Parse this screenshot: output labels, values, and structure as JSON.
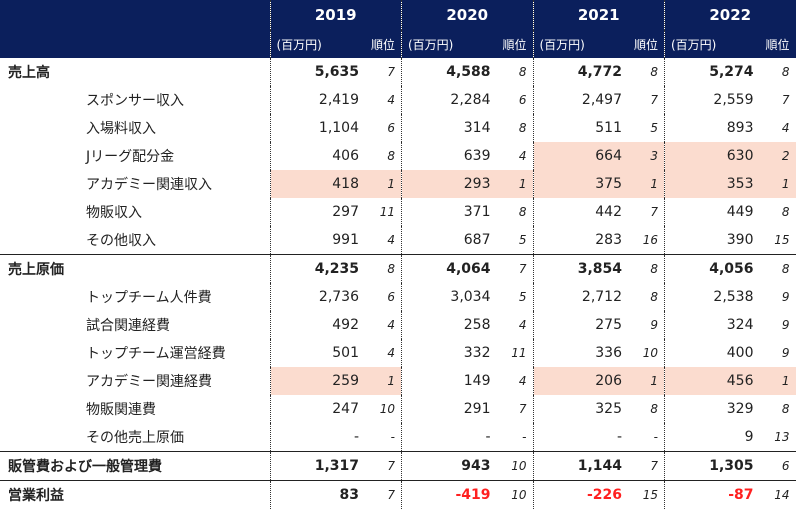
{
  "header": {
    "columns": [
      {
        "year": "2019",
        "amount": "(百万円)",
        "rank": "順位"
      },
      {
        "year": "2020",
        "amount": "(百万円)",
        "rank": "順位"
      },
      {
        "year": "2021",
        "amount": "(百万円)",
        "rank": "順位"
      },
      {
        "year": "2022",
        "amount": "(百万円)",
        "rank": "順位"
      }
    ]
  },
  "table": {
    "rows": [
      {
        "label": "売上高",
        "bold": true,
        "cells": [
          {
            "amount": "5,635",
            "rank": "7"
          },
          {
            "amount": "4,588",
            "rank": "8"
          },
          {
            "amount": "4,772",
            "rank": "8"
          },
          {
            "amount": "5,274",
            "rank": "8"
          }
        ]
      },
      {
        "label": "スポンサー収入",
        "cells": [
          {
            "amount": "2,419",
            "rank": "4"
          },
          {
            "amount": "2,284",
            "rank": "6"
          },
          {
            "amount": "2,497",
            "rank": "7"
          },
          {
            "amount": "2,559",
            "rank": "7"
          }
        ]
      },
      {
        "label": "入場料収入",
        "cells": [
          {
            "amount": "1,104",
            "rank": "6"
          },
          {
            "amount": "314",
            "rank": "8"
          },
          {
            "amount": "511",
            "rank": "5"
          },
          {
            "amount": "893",
            "rank": "4"
          }
        ]
      },
      {
        "label": "Jリーグ配分金",
        "cells": [
          {
            "amount": "406",
            "rank": "8"
          },
          {
            "amount": "639",
            "rank": "4"
          },
          {
            "amount": "664",
            "rank": "3",
            "highlight": true
          },
          {
            "amount": "630",
            "rank": "2",
            "highlight": true
          }
        ]
      },
      {
        "label": "アカデミー関連収入",
        "cells": [
          {
            "amount": "418",
            "rank": "1",
            "highlight": true
          },
          {
            "amount": "293",
            "rank": "1",
            "highlight": true
          },
          {
            "amount": "375",
            "rank": "1",
            "highlight": true
          },
          {
            "amount": "353",
            "rank": "1",
            "highlight": true
          }
        ]
      },
      {
        "label": "物販収入",
        "cells": [
          {
            "amount": "297",
            "rank": "11"
          },
          {
            "amount": "371",
            "rank": "8"
          },
          {
            "amount": "442",
            "rank": "7"
          },
          {
            "amount": "449",
            "rank": "8"
          }
        ]
      },
      {
        "label": "その他収入",
        "cells": [
          {
            "amount": "991",
            "rank": "4"
          },
          {
            "amount": "687",
            "rank": "5"
          },
          {
            "amount": "283",
            "rank": "16"
          },
          {
            "amount": "390",
            "rank": "15"
          }
        ]
      },
      {
        "label": "売上原価",
        "bold": true,
        "section": true,
        "cells": [
          {
            "amount": "4,235",
            "rank": "8"
          },
          {
            "amount": "4,064",
            "rank": "7"
          },
          {
            "amount": "3,854",
            "rank": "8"
          },
          {
            "amount": "4,056",
            "rank": "8"
          }
        ]
      },
      {
        "label": "トップチーム人件費",
        "cells": [
          {
            "amount": "2,736",
            "rank": "6"
          },
          {
            "amount": "3,034",
            "rank": "5"
          },
          {
            "amount": "2,712",
            "rank": "8"
          },
          {
            "amount": "2,538",
            "rank": "9"
          }
        ]
      },
      {
        "label": "試合関連経費",
        "cells": [
          {
            "amount": "492",
            "rank": "4"
          },
          {
            "amount": "258",
            "rank": "4"
          },
          {
            "amount": "275",
            "rank": "9"
          },
          {
            "amount": "324",
            "rank": "9"
          }
        ]
      },
      {
        "label": "トップチーム運営経費",
        "cells": [
          {
            "amount": "501",
            "rank": "4"
          },
          {
            "amount": "332",
            "rank": "11"
          },
          {
            "amount": "336",
            "rank": "10"
          },
          {
            "amount": "400",
            "rank": "9"
          }
        ]
      },
      {
        "label": "アカデミー関連経費",
        "cells": [
          {
            "amount": "259",
            "rank": "1",
            "highlight": true
          },
          {
            "amount": "149",
            "rank": "4"
          },
          {
            "amount": "206",
            "rank": "1",
            "highlight": true
          },
          {
            "amount": "456",
            "rank": "1",
            "highlight": true
          }
        ]
      },
      {
        "label": "物販関連費",
        "cells": [
          {
            "amount": "247",
            "rank": "10"
          },
          {
            "amount": "291",
            "rank": "7"
          },
          {
            "amount": "325",
            "rank": "8"
          },
          {
            "amount": "329",
            "rank": "8"
          }
        ]
      },
      {
        "label": "その他売上原価",
        "cells": [
          {
            "amount": "-",
            "rank": "-"
          },
          {
            "amount": "-",
            "rank": "-"
          },
          {
            "amount": "-",
            "rank": "-"
          },
          {
            "amount": "9",
            "rank": "13"
          }
        ]
      },
      {
        "label": "販管費および一般管理費",
        "bold": true,
        "section": true,
        "cells": [
          {
            "amount": "1,317",
            "rank": "7"
          },
          {
            "amount": "943",
            "rank": "10"
          },
          {
            "amount": "1,144",
            "rank": "7"
          },
          {
            "amount": "1,305",
            "rank": "6"
          }
        ]
      },
      {
        "label": "営業利益",
        "bold": true,
        "section": true,
        "cells": [
          {
            "amount": "83",
            "rank": "7"
          },
          {
            "amount": "-419",
            "rank": "10",
            "color": "#ff2020"
          },
          {
            "amount": "-226",
            "rank": "15",
            "color": "#ff2020"
          },
          {
            "amount": "-87",
            "rank": "14",
            "color": "#ff2020"
          }
        ]
      }
    ]
  }
}
